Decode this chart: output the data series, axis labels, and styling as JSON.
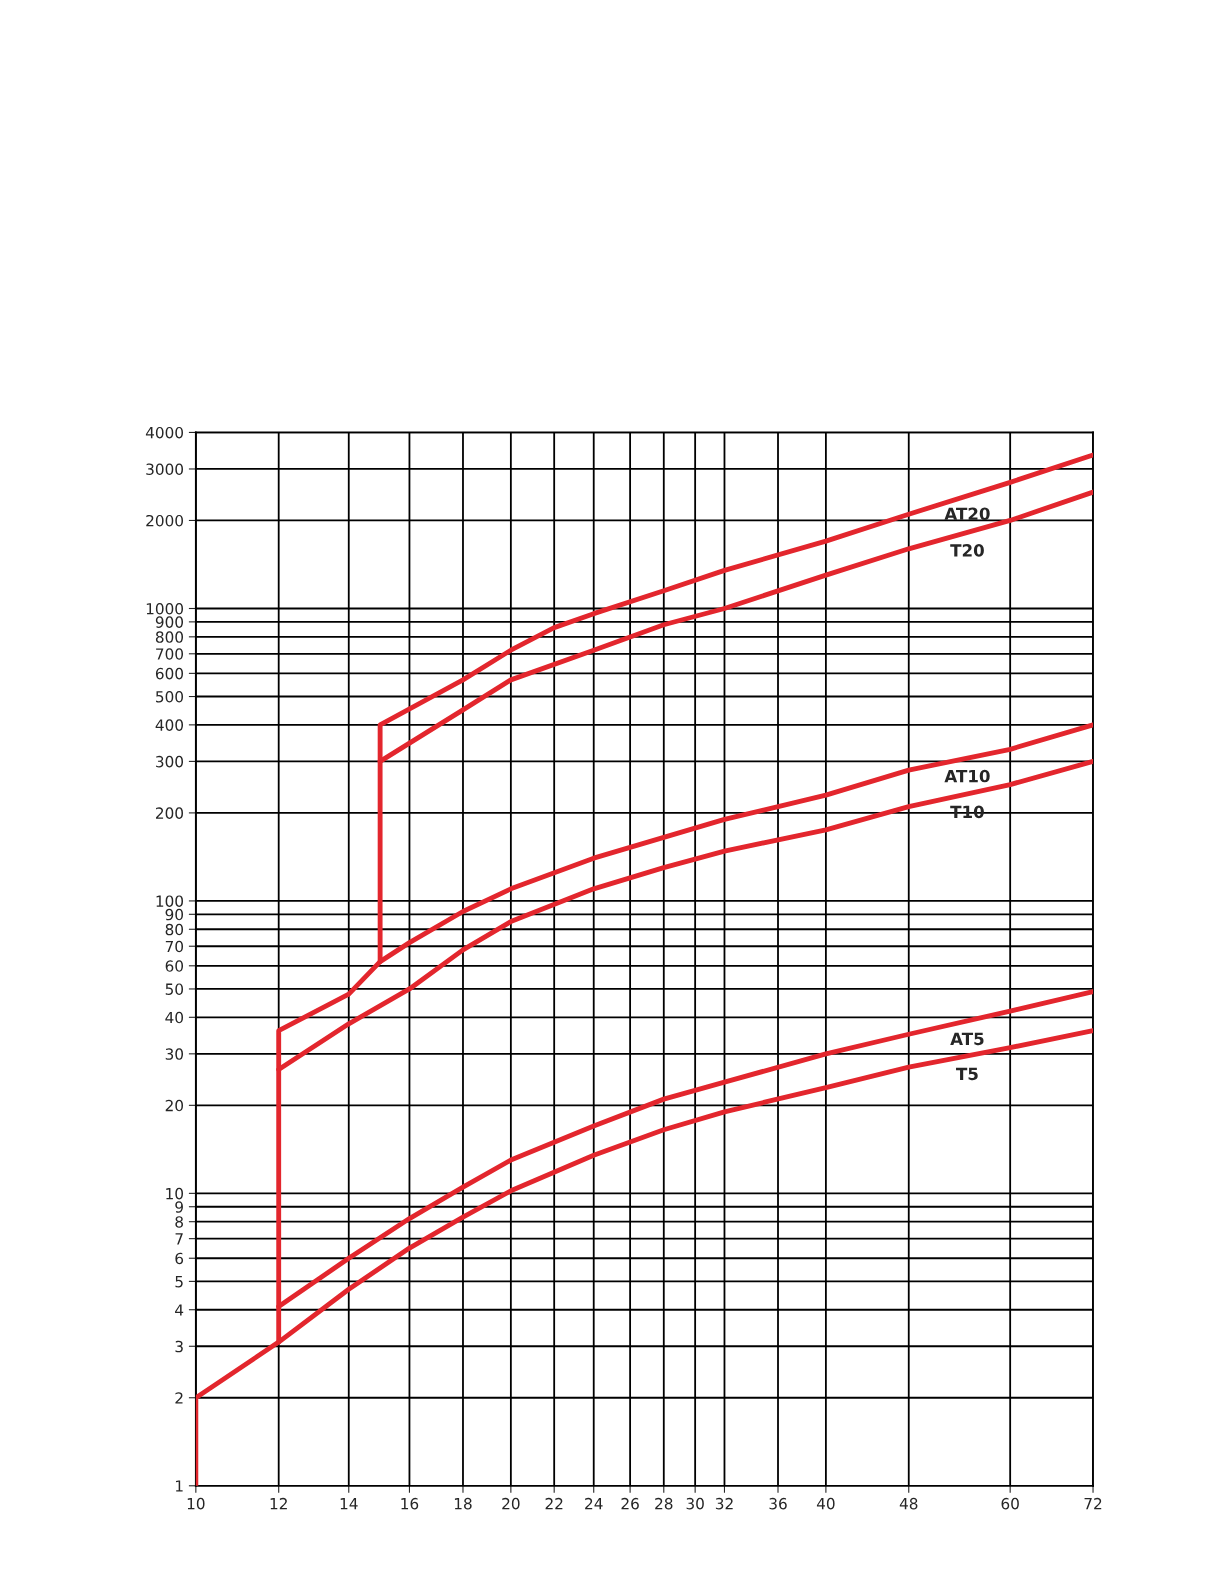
{
  "chart_data": {
    "type": "line",
    "log": "xy",
    "grid": true,
    "marker": "none",
    "line_style": "solid",
    "xlim": [
      10,
      72
    ],
    "xticks": [
      10,
      12,
      14,
      16,
      18,
      20,
      22,
      24,
      26,
      28,
      30,
      32,
      36,
      40,
      48,
      60,
      72
    ],
    "ylim": [
      1,
      4000
    ],
    "yticks": [
      1,
      2,
      3,
      4,
      5,
      6,
      7,
      8,
      9,
      10,
      20,
      30,
      40,
      50,
      60,
      70,
      80,
      90,
      100,
      200,
      300,
      400,
      500,
      600,
      700,
      800,
      900,
      1000,
      2000,
      3000,
      4000
    ],
    "series": [
      {
        "name": "T5",
        "color": "#e3262d",
        "x": [
          10,
          10,
          12,
          14,
          16,
          18,
          20,
          24,
          28,
          32,
          40,
          48,
          60,
          72
        ],
        "values": [
          1,
          2,
          3.1,
          4.7,
          6.5,
          8.3,
          10.2,
          13.5,
          16.5,
          19,
          23,
          27,
          31.5,
          36
        ]
      },
      {
        "name": "AT5",
        "color": "#e3262d",
        "x": [
          12,
          14,
          16,
          18,
          20,
          24,
          28,
          32,
          40,
          48,
          60,
          72
        ],
        "values": [
          4.1,
          6,
          8.2,
          10.5,
          13,
          17,
          21,
          24,
          30,
          35,
          42,
          49
        ]
      },
      {
        "name": "T10",
        "color": "#e3262d",
        "x": [
          12,
          14,
          16,
          18,
          20,
          24,
          28,
          32,
          40,
          48,
          60,
          72
        ],
        "values": [
          26.5,
          38,
          50,
          68,
          85,
          110,
          130,
          148,
          175,
          210,
          250,
          300
        ]
      },
      {
        "name": "AT10",
        "color": "#e3262d",
        "x": [
          12,
          12,
          14,
          15,
          16,
          18,
          20,
          24,
          28,
          32,
          40,
          48,
          60,
          72
        ],
        "values": [
          3.1,
          36,
          48,
          62,
          72,
          92,
          110,
          140,
          165,
          190,
          230,
          280,
          330,
          400
        ]
      },
      {
        "name": "T20",
        "color": "#e3262d",
        "x": [
          15,
          18,
          20,
          24,
          28,
          32,
          40,
          48,
          60,
          72
        ],
        "values": [
          300,
          450,
          570,
          720,
          880,
          1000,
          1300,
          1600,
          2000,
          2500
        ]
      },
      {
        "name": "AT20",
        "color": "#e3262d",
        "x": [
          15,
          15,
          18,
          20,
          22,
          24,
          28,
          32,
          40,
          48,
          60,
          72
        ],
        "values": [
          62,
          400,
          570,
          720,
          860,
          960,
          1150,
          1350,
          1700,
          2100,
          2700,
          3350
        ]
      }
    ]
  }
}
